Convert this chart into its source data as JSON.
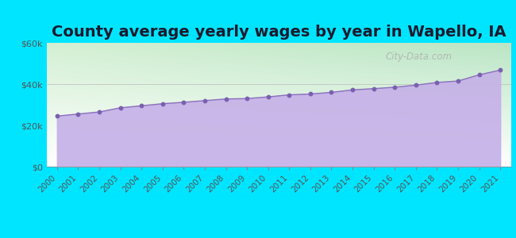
{
  "title": "County average yearly wages by year in Wapello, IA",
  "years": [
    2000,
    2001,
    2002,
    2003,
    2004,
    2005,
    2006,
    2007,
    2008,
    2009,
    2010,
    2011,
    2012,
    2013,
    2014,
    2015,
    2016,
    2017,
    2018,
    2019,
    2020,
    2021
  ],
  "values": [
    24500,
    25500,
    26500,
    28500,
    29500,
    30500,
    31200,
    32000,
    32800,
    33000,
    33800,
    34800,
    35200,
    36000,
    37200,
    37800,
    38500,
    39500,
    40800,
    41500,
    44500,
    46800
  ],
  "ylim": [
    0,
    60000
  ],
  "yticks": [
    0,
    20000,
    40000,
    60000
  ],
  "ytick_labels": [
    "$0",
    "$20k",
    "$40k",
    "$60k"
  ],
  "fill_color_top": "#c5b0e8",
  "fill_color_bottom": "#d8c8f0",
  "line_color": "#8b6fbd",
  "marker_color": "#7a60b0",
  "bg_outer": "#00e5ff",
  "bg_plot_top_left": "#d4f0d4",
  "bg_plot_top_right": "#f0f8ee",
  "title_fontsize": 14,
  "tick_fontsize": 8,
  "watermark": "City-Data.com"
}
